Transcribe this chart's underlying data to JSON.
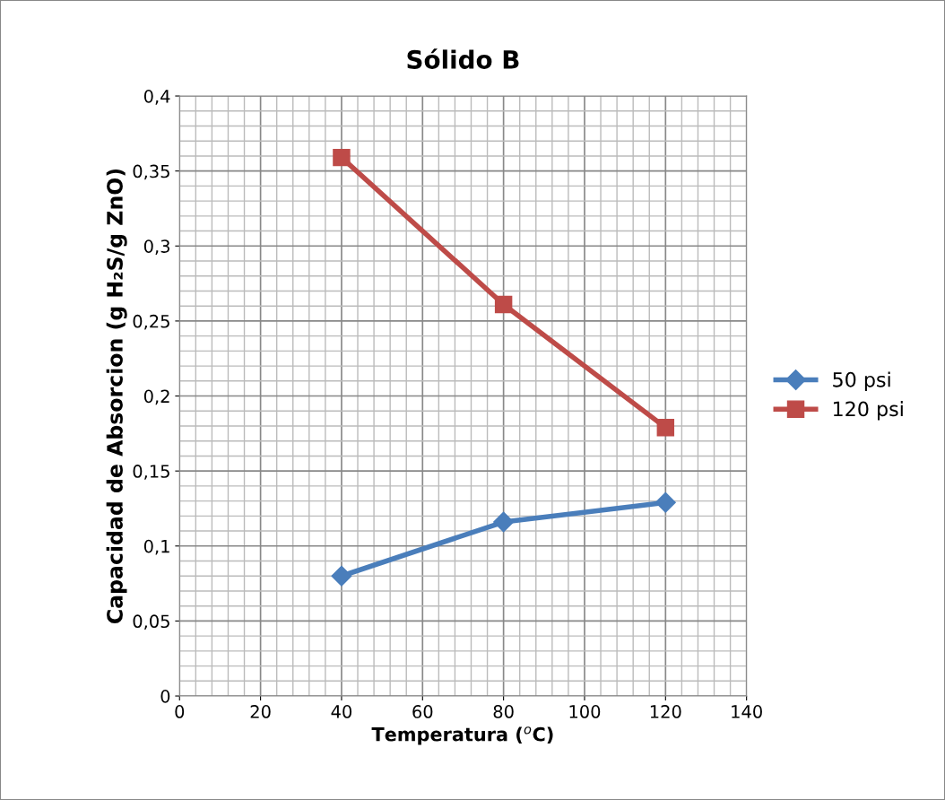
{
  "chart_data": {
    "type": "line",
    "title": "Sólido B",
    "xlabel": "Temperatura ($^{o}$C)",
    "ylabel": "Capacidad de Absorcion (g H₂S/g ZnO)",
    "x": [
      40,
      80,
      120
    ],
    "series": [
      {
        "name": "50 psi",
        "color": "#4a7ebb",
        "marker": "diamond",
        "values": [
          0.08,
          0.116,
          0.129
        ]
      },
      {
        "name": "120 psi",
        "color": "#be4b48",
        "marker": "square",
        "values": [
          0.359,
          0.261,
          0.179
        ]
      }
    ],
    "xlim": [
      0,
      140
    ],
    "xticks": [
      0,
      20,
      40,
      60,
      80,
      100,
      120,
      140
    ],
    "ylim": [
      0,
      0.4
    ],
    "yticks": [
      0,
      {
        "value": 0.05,
        "label": "0,05"
      },
      {
        "value": 0.1,
        "label": "0,1"
      },
      {
        "value": 0.15,
        "label": "0,15"
      },
      {
        "value": 0.2,
        "label": "0,2"
      },
      {
        "value": 0.25,
        "label": "0,25"
      },
      {
        "value": 0.3,
        "label": "0,3"
      },
      {
        "value": 0.35,
        "label": "0,35"
      },
      {
        "value": 0.4,
        "label": "0,4"
      }
    ],
    "grid": true,
    "legend": "right",
    "line_style": "solid"
  }
}
